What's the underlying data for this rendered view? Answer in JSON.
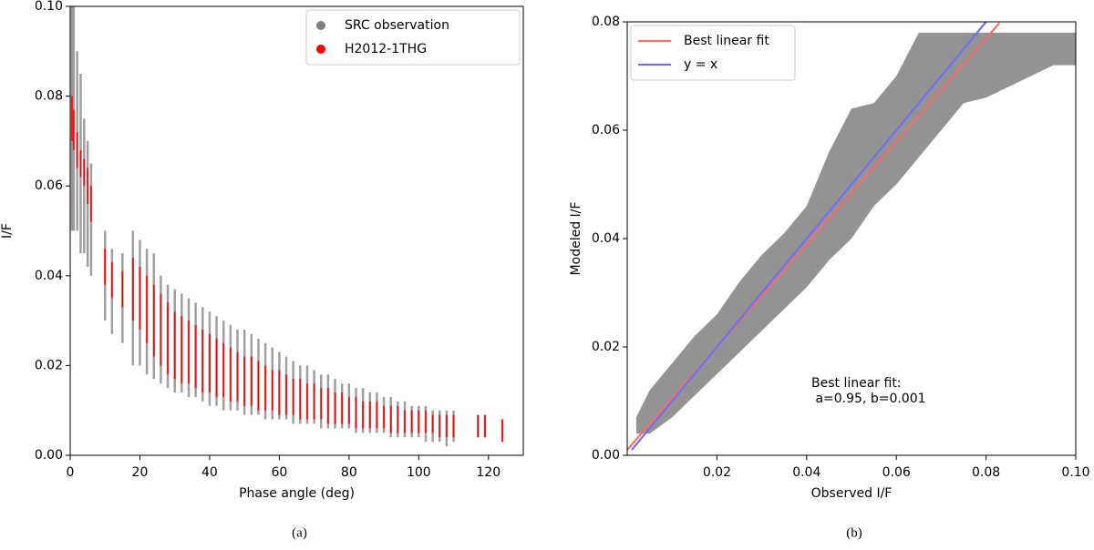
{
  "chart_data": [
    {
      "type": "range",
      "caption": "(a)",
      "x_label": "Phase angle (deg)",
      "y_label": "I/F",
      "xlim": [
        0,
        130
      ],
      "xticks": [
        0,
        20,
        40,
        60,
        80,
        100,
        120
      ],
      "ylim": [
        0,
        0.1
      ],
      "yticks": [
        {
          "value": 0,
          "label": "0.00"
        },
        0.02,
        0.04,
        0.06,
        0.08,
        {
          "value": 0.1,
          "label": "0.10"
        }
      ],
      "legend": "upper right",
      "x": [
        0.5,
        1,
        2,
        3,
        4,
        5,
        6,
        10,
        12,
        15,
        18,
        20,
        22,
        24,
        26,
        28,
        30,
        32,
        34,
        36,
        38,
        40,
        42,
        44,
        46,
        48,
        50,
        52,
        54,
        56,
        58,
        60,
        62,
        64,
        66,
        68,
        70,
        72,
        74,
        76,
        78,
        80,
        82,
        84,
        86,
        88,
        90,
        92,
        94,
        96,
        98,
        100,
        102,
        104,
        106,
        108,
        110,
        117,
        119,
        124
      ],
      "series": [
        {
          "name": "SRC observation",
          "color": "#808080",
          "low": [
            0.05,
            0.05,
            0.05,
            0.045,
            0.045,
            0.042,
            0.04,
            0.03,
            0.027,
            0.025,
            0.02,
            0.02,
            0.018,
            0.017,
            0.016,
            0.015,
            0.014,
            0.014,
            0.013,
            0.013,
            0.012,
            0.011,
            0.011,
            0.01,
            0.01,
            0.01,
            0.009,
            0.009,
            0.009,
            0.008,
            0.008,
            0.008,
            0.008,
            0.007,
            0.007,
            0.007,
            0.007,
            0.006,
            0.006,
            0.006,
            0.006,
            0.006,
            0.005,
            0.005,
            0.005,
            0.005,
            0.005,
            0.004,
            0.004,
            0.004,
            0.004,
            0.004,
            0.003,
            0.003,
            0.003,
            0.002,
            0.003,
            0.004,
            0.004,
            0.003
          ],
          "high": [
            0.1,
            0.1,
            0.09,
            0.085,
            0.075,
            0.07,
            0.065,
            0.05,
            0.046,
            0.045,
            0.05,
            0.048,
            0.046,
            0.045,
            0.04,
            0.038,
            0.037,
            0.036,
            0.035,
            0.034,
            0.033,
            0.032,
            0.031,
            0.03,
            0.029,
            0.028,
            0.028,
            0.027,
            0.026,
            0.025,
            0.024,
            0.023,
            0.022,
            0.021,
            0.02,
            0.02,
            0.019,
            0.018,
            0.018,
            0.017,
            0.016,
            0.016,
            0.015,
            0.015,
            0.014,
            0.014,
            0.013,
            0.013,
            0.012,
            0.012,
            0.011,
            0.011,
            0.011,
            0.01,
            0.01,
            0.01,
            0.01,
            0.009,
            0.009,
            0.008
          ]
        },
        {
          "name": "H2012-1THG",
          "color": "#ff0000",
          "low": [
            0.07,
            0.068,
            0.064,
            0.062,
            0.06,
            0.056,
            0.052,
            0.038,
            0.035,
            0.033,
            0.03,
            0.028,
            0.025,
            0.022,
            0.02,
            0.018,
            0.017,
            0.016,
            0.016,
            0.015,
            0.014,
            0.014,
            0.013,
            0.013,
            0.012,
            0.012,
            0.011,
            0.011,
            0.01,
            0.01,
            0.01,
            0.009,
            0.009,
            0.009,
            0.008,
            0.008,
            0.008,
            0.008,
            0.007,
            0.007,
            0.007,
            0.007,
            0.006,
            0.006,
            0.006,
            0.006,
            0.006,
            0.005,
            0.005,
            0.005,
            0.005,
            0.005,
            0.005,
            0.005,
            0.004,
            0.004,
            0.004,
            0.004,
            0.004,
            0.003
          ],
          "high": [
            0.08,
            0.077,
            0.072,
            0.068,
            0.066,
            0.064,
            0.06,
            0.046,
            0.043,
            0.041,
            0.044,
            0.042,
            0.04,
            0.038,
            0.036,
            0.034,
            0.032,
            0.031,
            0.03,
            0.029,
            0.028,
            0.027,
            0.026,
            0.025,
            0.024,
            0.023,
            0.022,
            0.022,
            0.021,
            0.02,
            0.019,
            0.019,
            0.018,
            0.017,
            0.017,
            0.016,
            0.016,
            0.015,
            0.015,
            0.014,
            0.014,
            0.013,
            0.013,
            0.012,
            0.012,
            0.012,
            0.011,
            0.011,
            0.011,
            0.01,
            0.01,
            0.01,
            0.01,
            0.009,
            0.009,
            0.009,
            0.009,
            0.009,
            0.009,
            0.008
          ]
        }
      ]
    },
    {
      "type": "band_lines",
      "caption": "(b)",
      "x_label": "Observed I/F",
      "y_label": "Modeled I/F",
      "xlim": [
        0,
        0.1
      ],
      "xticks": [
        0.02,
        0.04,
        0.06,
        0.08,
        {
          "value": 0.1,
          "label": "0.10"
        }
      ],
      "ylim": [
        0,
        0.08
      ],
      "yticks": [
        {
          "value": 0,
          "label": "0.00"
        },
        0.02,
        0.04,
        0.06,
        0.08
      ],
      "legend": "upper left",
      "band": {
        "color": "#808080",
        "x": [
          0.002,
          0.005,
          0.01,
          0.015,
          0.02,
          0.025,
          0.03,
          0.035,
          0.04,
          0.045,
          0.05,
          0.055,
          0.06,
          0.065,
          0.07,
          0.075,
          0.08,
          0.085,
          0.09,
          0.095,
          0.1
        ],
        "low": [
          0.004,
          0.004,
          0.007,
          0.011,
          0.015,
          0.019,
          0.023,
          0.027,
          0.031,
          0.036,
          0.04,
          0.046,
          0.05,
          0.055,
          0.06,
          0.065,
          0.066,
          0.068,
          0.07,
          0.072,
          0.072
        ],
        "high": [
          0.007,
          0.012,
          0.017,
          0.022,
          0.026,
          0.032,
          0.037,
          0.041,
          0.046,
          0.056,
          0.064,
          0.065,
          0.07,
          0.078,
          0.078,
          0.078,
          0.078,
          0.078,
          0.078,
          0.078,
          0.078
        ]
      },
      "series": [
        {
          "name": "Best linear fit",
          "color": "#f07070",
          "x": [
            0,
            0.083
          ],
          "values": [
            0.001,
            0.0798
          ]
        },
        {
          "name": "y = x",
          "color": "#6f6ff0",
          "x": [
            0.001,
            0.08
          ],
          "values": [
            0.001,
            0.08
          ]
        }
      ],
      "annotations": [
        "Best linear fit:",
        " a=0.95, b=0.001"
      ]
    }
  ]
}
